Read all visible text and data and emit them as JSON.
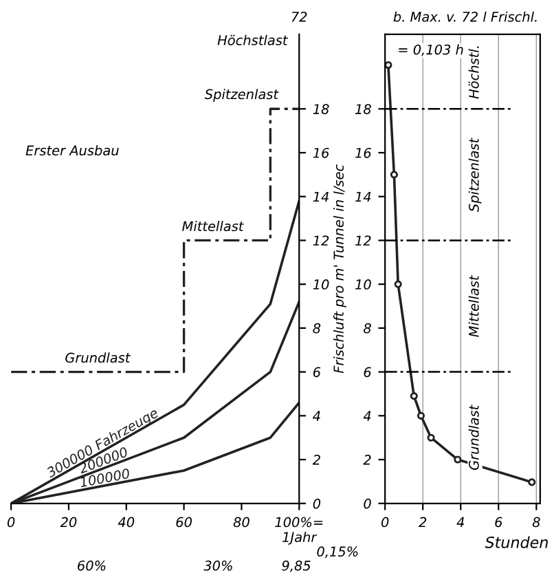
{
  "chart_data": [
    {
      "type": "line",
      "ylabel": "Frischluft pro m' Tunnel in l/sec",
      "xlim": [
        0,
        100
      ],
      "ylim": [
        0,
        21.4
      ],
      "xticks": [
        0,
        20,
        40,
        60,
        80,
        {
          "value": 100,
          "label": "100%=\n1Jahr"
        }
      ],
      "yticks": [
        0,
        2,
        4,
        6,
        8,
        10,
        12,
        14,
        16,
        18
      ],
      "legend": false,
      "marker": "none",
      "series": [
        {
          "name": "300000 Fahrzeuge",
          "color": "#222222",
          "x": [
            0,
            60,
            90,
            100
          ],
          "values": [
            0,
            4.5,
            9.1,
            13.8
          ]
        },
        {
          "name": "200000",
          "color": "#222222",
          "x": [
            0,
            60,
            90,
            100
          ],
          "values": [
            0,
            3.0,
            6.0,
            9.2
          ]
        },
        {
          "name": "100000",
          "color": "#222222",
          "x": [
            0,
            60,
            90,
            100
          ],
          "values": [
            0,
            1.5,
            3.0,
            4.6
          ]
        },
        {
          "type": "step",
          "color": "#222222",
          "line_style": "dashed",
          "x": [
            0,
            60,
            90,
            99.85
          ],
          "values": [
            6,
            12,
            18,
            18
          ]
        }
      ],
      "annotations": [
        {
          "text": "Grundlast",
          "x": 30,
          "y": 6
        },
        {
          "text": "Mittellast",
          "x": 70,
          "y": 12
        },
        "Spitzenlast",
        "Erster Ausbau",
        "Höchstlast",
        "72",
        "60%",
        "30%",
        "9,85",
        "0,15%"
      ]
    },
    {
      "type": "line",
      "xlabel": "Stunden",
      "xlim": [
        0,
        8.2
      ],
      "ylim": [
        0,
        21.4
      ],
      "xticks": [
        0,
        2,
        4,
        6,
        8
      ],
      "yticks": [
        0,
        2,
        4,
        6,
        8,
        10,
        12,
        14,
        16,
        18
      ],
      "grid": "x",
      "legend": false,
      "marker": "circle",
      "series": [
        {
          "color": "#222222",
          "x": [
            0.17,
            0.48,
            0.69,
            1.53,
            1.9,
            2.43,
            3.84,
            7.76
          ],
          "values": [
            20,
            15,
            10,
            4.9,
            4,
            3,
            2,
            0.97
          ]
        }
      ],
      "ref_lines": [
        {
          "axis": "y",
          "value": 6,
          "line_style": "dashed"
        },
        {
          "axis": "y",
          "value": 12,
          "line_style": "dashed"
        },
        {
          "axis": "y",
          "value": 18,
          "line_style": "dashed"
        }
      ],
      "annotations": [
        "Grundlast",
        "Mittellast",
        "Spitzenlast",
        "Höchstl.",
        "b. Max. v. 72 l Frischl.",
        "= 0,103 h"
      ]
    }
  ]
}
